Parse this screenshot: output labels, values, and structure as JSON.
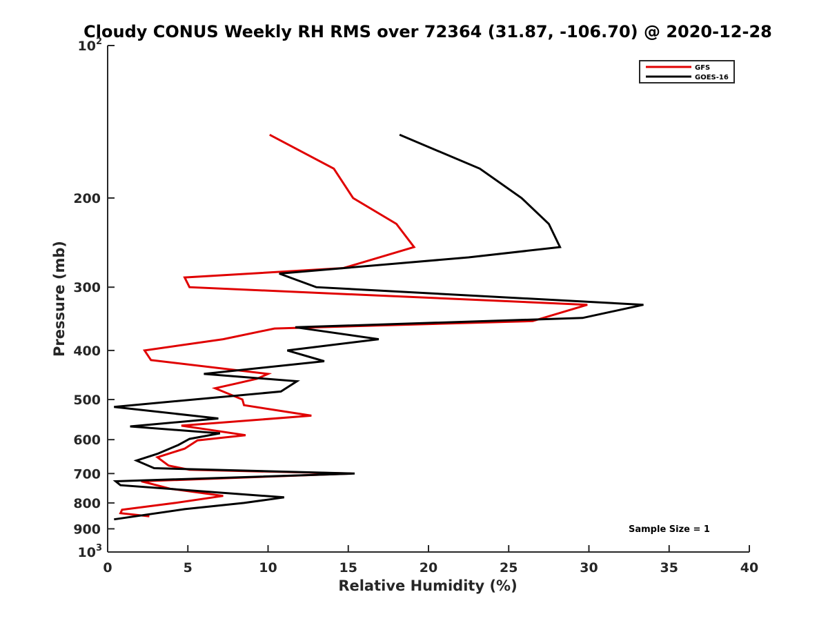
{
  "chart_data": {
    "type": "line",
    "title": "Cloudy CONUS Weekly RH RMS over 72364 (31.87, -106.70) @ 2020-12-28",
    "xlabel": "Relative Humidity (%)",
    "ylabel": "Pressure (mb)",
    "xlim": [
      0,
      40
    ],
    "ylim": [
      100,
      1000
    ],
    "y_scale": "log",
    "y_reversed": true,
    "grid": false,
    "legend_position": "top-right",
    "x_ticks": [
      "0",
      "5",
      "10",
      "15",
      "20",
      "25",
      "30",
      "35",
      "40"
    ],
    "x_tick_values": [
      0,
      5,
      10,
      15,
      20,
      25,
      30,
      35,
      40
    ],
    "y_ticks": [
      "200",
      "300",
      "400",
      "500",
      "600",
      "700",
      "800",
      "900"
    ],
    "y_tick_values": [
      200,
      300,
      400,
      500,
      600,
      700,
      800,
      900
    ],
    "y_tick_pow_labels": [
      {
        "value": 100,
        "base": "10",
        "exp": "2"
      },
      {
        "value": 1000,
        "base": "10",
        "exp": "3"
      }
    ],
    "annotation": "Sample Size = 1",
    "series": [
      {
        "name": "GFS",
        "color": "#e00000",
        "points": [
          [
            10.1,
            150
          ],
          [
            14.1,
            175
          ],
          [
            15.3,
            200
          ],
          [
            18.0,
            225
          ],
          [
            19.1,
            250
          ],
          [
            14.7,
            275
          ],
          [
            4.8,
            287
          ],
          [
            5.1,
            300
          ],
          [
            29.9,
            325
          ],
          [
            26.5,
            350
          ],
          [
            10.4,
            362
          ],
          [
            7.2,
            380
          ],
          [
            2.3,
            400
          ],
          [
            2.7,
            418
          ],
          [
            10.0,
            445
          ],
          [
            9.3,
            455
          ],
          [
            8.0,
            465
          ],
          [
            6.7,
            475
          ],
          [
            8.4,
            500
          ],
          [
            8.5,
            513
          ],
          [
            12.7,
            538
          ],
          [
            4.6,
            563
          ],
          [
            8.6,
            588
          ],
          [
            5.6,
            602
          ],
          [
            4.8,
            625
          ],
          [
            3.1,
            650
          ],
          [
            3.8,
            675
          ],
          [
            5.1,
            688
          ],
          [
            15.2,
            700
          ],
          [
            2.1,
            725
          ],
          [
            3.9,
            750
          ],
          [
            7.2,
            775
          ],
          [
            4.2,
            800
          ],
          [
            0.9,
            825
          ],
          [
            0.8,
            838
          ],
          [
            2.6,
            850
          ]
        ]
      },
      {
        "name": "GOES-16",
        "color": "#000000",
        "points": [
          [
            18.2,
            150
          ],
          [
            23.2,
            175
          ],
          [
            25.8,
            200
          ],
          [
            27.5,
            225
          ],
          [
            28.2,
            250
          ],
          [
            22.5,
            262
          ],
          [
            10.7,
            282
          ],
          [
            13.0,
            300
          ],
          [
            33.4,
            325
          ],
          [
            29.6,
            345
          ],
          [
            11.7,
            360
          ],
          [
            16.9,
            380
          ],
          [
            11.2,
            400
          ],
          [
            13.5,
            420
          ],
          [
            6.0,
            445
          ],
          [
            11.8,
            460
          ],
          [
            10.8,
            482
          ],
          [
            0.4,
            517
          ],
          [
            6.9,
            545
          ],
          [
            1.4,
            565
          ],
          [
            7.0,
            583
          ],
          [
            5.1,
            598
          ],
          [
            4.4,
            615
          ],
          [
            3.1,
            640
          ],
          [
            1.8,
            660
          ],
          [
            2.9,
            683
          ],
          [
            15.4,
            700
          ],
          [
            0.5,
            725
          ],
          [
            0.8,
            738
          ],
          [
            11.0,
            780
          ],
          [
            8.5,
            800
          ],
          [
            4.8,
            823
          ],
          [
            0.4,
            862
          ]
        ]
      }
    ]
  }
}
